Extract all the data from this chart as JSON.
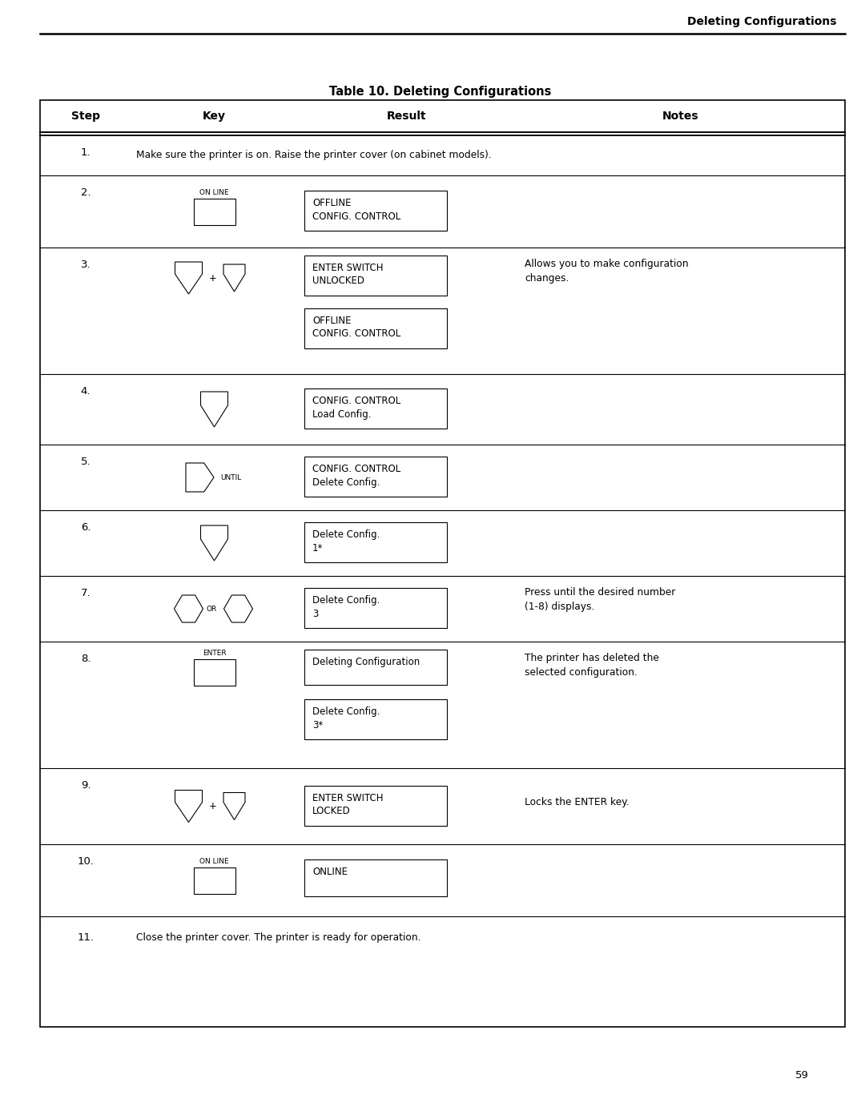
{
  "header_title": "Deleting Configurations",
  "table_title": "Table 10. Deleting Configurations",
  "page_number": "59",
  "col_headers": [
    "Step",
    "Key",
    "Result",
    "Notes"
  ],
  "background_color": "#ffffff",
  "text_color": "#000000",
  "page_width": 10.8,
  "page_height": 13.97
}
